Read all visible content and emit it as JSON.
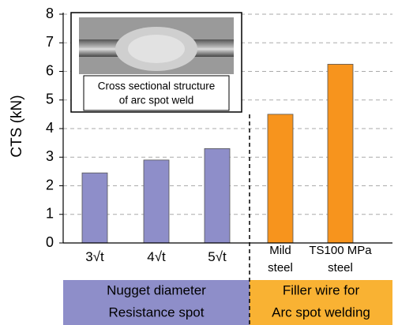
{
  "chart_data": {
    "type": "bar",
    "y_label": "CTS (kN)",
    "categories": [
      "3√t",
      "4√t",
      "5√t",
      "Mild\nsteel",
      "TS100 MPa\nsteel"
    ],
    "values": [
      2.45,
      2.9,
      3.3,
      4.5,
      6.25
    ],
    "colors": [
      "#8e8ec9",
      "#8e8ec9",
      "#8e8ec9",
      "#f7941d",
      "#f7941d"
    ],
    "ylim": [
      0,
      8
    ],
    "yticks": [
      0,
      1,
      2,
      3,
      4,
      5,
      6,
      7,
      8
    ],
    "grid": true,
    "groups": [
      {
        "label": "Nugget diameter",
        "sublabel": "Resistance spot",
        "color": "#8e8ec9"
      },
      {
        "label": "Filler wire for",
        "sublabel": "Arc spot welding",
        "color": "#f9b233"
      }
    ],
    "inset_caption": [
      "Cross sectional structure",
      "of arc spot weld"
    ]
  }
}
